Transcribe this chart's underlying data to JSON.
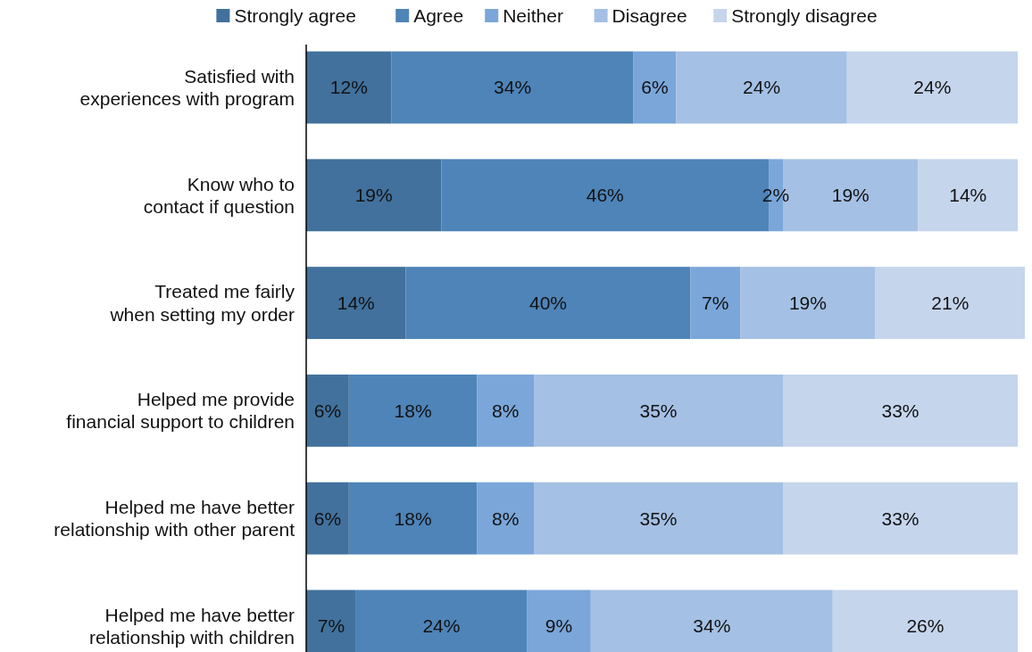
{
  "chart_data": {
    "type": "bar",
    "orientation": "horizontal",
    "stacked": true,
    "legend": "top",
    "categories": [
      "Satisfied with\nexperiences with program",
      "Know who to\ncontact if question",
      "Treated me fairly\nwhen setting my order",
      "Helped me provide\nfinancial support to children",
      "Helped me have better\nrelationship with other parent",
      "Helped me have better\nrelationship with children"
    ],
    "series": [
      {
        "name": "Strongly agree",
        "color": "#41719c",
        "values": [
          12,
          19,
          14,
          6,
          6,
          7
        ],
        "value_labels": [
          "12%",
          "19%",
          "14%",
          "6%",
          "6%",
          "7%"
        ]
      },
      {
        "name": "Agree",
        "color": "#4e84b8",
        "values": [
          34,
          46,
          40,
          18,
          18,
          24
        ],
        "value_labels": [
          "34%",
          "46%",
          "40%",
          "18%",
          "18%",
          "24%"
        ]
      },
      {
        "name": "Neither",
        "color": "#7aa6d9",
        "values": [
          6,
          2,
          7,
          8,
          8,
          9
        ],
        "value_labels": [
          "6%",
          "2%",
          "7%",
          "8%",
          "8%",
          "9%"
        ]
      },
      {
        "name": "Disagree",
        "color": "#a4c0e4",
        "values": [
          24,
          19,
          19,
          35,
          35,
          34
        ],
        "value_labels": [
          "24%",
          "19%",
          "19%",
          "35%",
          "35%",
          "34%"
        ]
      },
      {
        "name": "Strongly disagree",
        "color": "#c5d5ec",
        "values": [
          24,
          14,
          21,
          33,
          33,
          26
        ],
        "value_labels": [
          "24%",
          "14%",
          "21%",
          "33%",
          "33%",
          "26%"
        ]
      }
    ]
  }
}
